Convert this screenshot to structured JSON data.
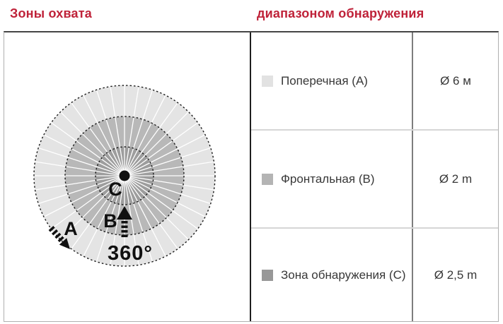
{
  "header": {
    "left_title": "Зоны охвата",
    "right_title": "диапазоном обнаружения",
    "accent_color": "#bf2239"
  },
  "diagram": {
    "labels": {
      "a": "A",
      "b": "B",
      "c": "C",
      "rotation": "360°"
    },
    "zones": [
      {
        "id": "A",
        "radius": 128,
        "fill": "#e4e4e4"
      },
      {
        "id": "B",
        "radius": 84,
        "fill": "#b8b8b8"
      },
      {
        "id": "C",
        "radius": 41,
        "fill": "#9d9d9d"
      }
    ],
    "spoke_count": 40,
    "spoke_color": "#ffffff",
    "outline_color": "#1c1c1c",
    "center_dot_color": "#111111"
  },
  "table": {
    "rows": [
      {
        "swatch": "#e2e2e2",
        "label": "Поперечная (A)",
        "value": "Ø 6 м"
      },
      {
        "swatch": "#b4b4b4",
        "label": "Фронтальная (B)",
        "value": "Ø 2 m"
      },
      {
        "swatch": "#989898",
        "label": "Зона обнаружения (C)",
        "value": "Ø 2,5 m"
      }
    ]
  }
}
